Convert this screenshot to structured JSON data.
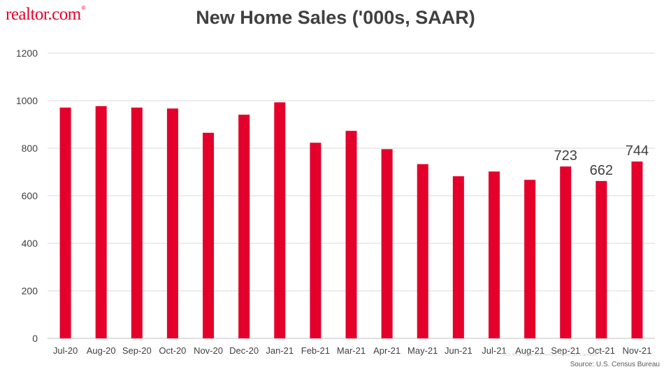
{
  "brand": {
    "logo_text": "realtor.com",
    "registered_mark": "®"
  },
  "footer": {
    "source": "Source: U.S. Census Bureau",
    "copyright": "©2021 Move, Inc. All rights reserved. Do not copy or distribute."
  },
  "colors": {
    "bar": "#e4002b",
    "brand": "#e4002b",
    "grid": "#d9d9d9",
    "title": "#404040",
    "tick_text": "#404040"
  },
  "chart_data": {
    "type": "bar",
    "title": "New Home Sales ('000s, SAAR)",
    "xlabel": "",
    "ylabel": "",
    "categories": [
      "Jul-20",
      "Aug-20",
      "Sep-20",
      "Oct-20",
      "Nov-20",
      "Dec-20",
      "Jan-21",
      "Feb-21",
      "Mar-21",
      "Apr-21",
      "May-21",
      "Jun-21",
      "Jul-21",
      "Aug-21",
      "Sep-21",
      "Oct-21",
      "Nov-21"
    ],
    "values": [
      971,
      977,
      971,
      967,
      865,
      941,
      993,
      823,
      873,
      796,
      733,
      682,
      702,
      667,
      723,
      662,
      744
    ],
    "data_labels": [
      {
        "category": "Sep-21",
        "text": "723"
      },
      {
        "category": "Oct-21",
        "text": "662"
      },
      {
        "category": "Nov-21",
        "text": "744"
      }
    ],
    "ylim": [
      0,
      1200
    ],
    "yticks": [
      0,
      200,
      400,
      600,
      800,
      1000,
      1200
    ],
    "grid": true,
    "legend": "none"
  }
}
